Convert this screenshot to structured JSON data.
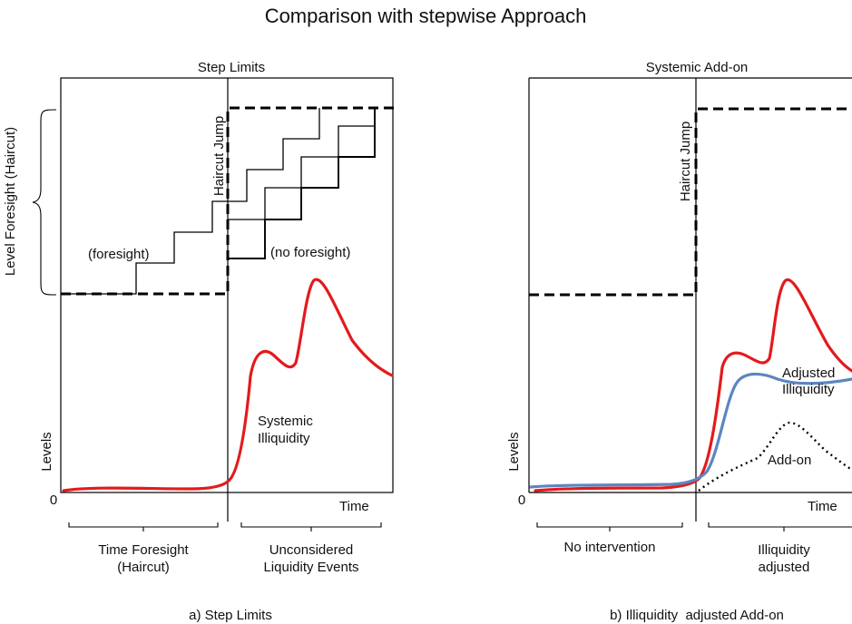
{
  "title": "Comparison with stepwise Approach",
  "panel_a": {
    "title": "Step Limits",
    "caption": "a) Step Limits",
    "y_axis_label": "Levels",
    "x_axis_label": "Time",
    "origin": "0",
    "side_label": "Level Foresight (Haircut)",
    "jump_label": "Haircut Jump",
    "foresight_label": "(foresight)",
    "no_foresight_label": "(no foresight)",
    "curve_label_1": "Systemic",
    "curve_label_2": "Illiquidity",
    "left_phase_1": "Time Foresight",
    "left_phase_2": "(Haircut)",
    "right_phase_1": "Unconsidered",
    "right_phase_2": "Liquidity Events"
  },
  "panel_b": {
    "title": "Systemic Add-on",
    "caption": "b) Illiquidity  adjusted Add-on",
    "y_axis_label": "Levels",
    "x_axis_label": "Time",
    "origin": "0",
    "jump_label": "Haircut Jump",
    "adjusted_label_1": "Adjusted",
    "adjusted_label_2": "Illiquidity",
    "addon_label": "Add-on",
    "left_phase": "No intervention",
    "right_phase_1": "Illiquidity",
    "right_phase_2": "adjusted"
  },
  "colors": {
    "systemic_illiquidity": "#e31a1c",
    "adjusted_illiquidity": "#5b86c0",
    "limits": "#000000"
  }
}
